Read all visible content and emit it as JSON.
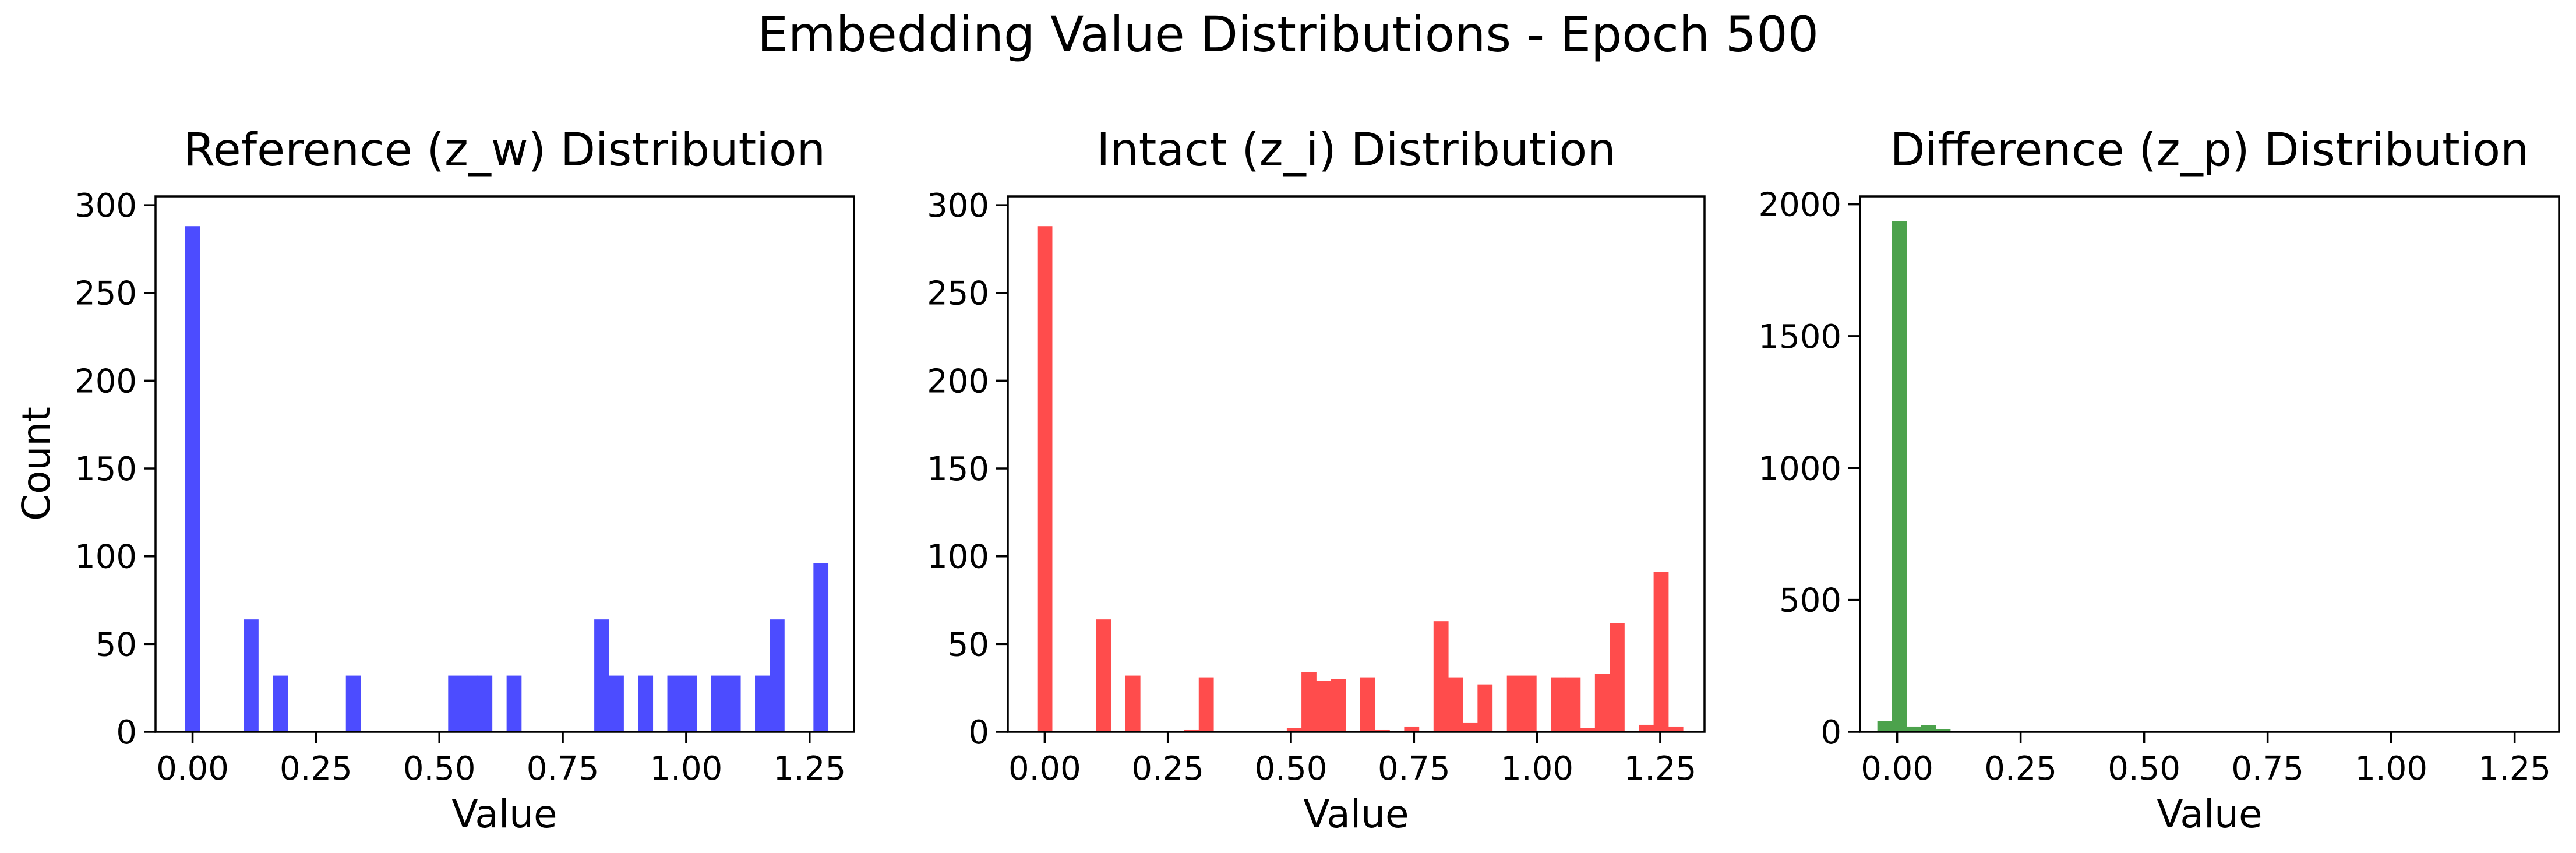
{
  "figure": {
    "title": "Embedding Value Distributions - Epoch 500"
  },
  "chart_data": [
    {
      "type": "bar",
      "title": "Reference (z_w) Distribution",
      "xlabel": "Value",
      "ylabel": "Count",
      "color": "#4c4cff",
      "xlim": [
        -0.075,
        1.34
      ],
      "ylim": [
        0,
        305
      ],
      "xticks": [
        0.0,
        0.25,
        0.5,
        0.75,
        1.0,
        1.25
      ],
      "xtick_labels": [
        "0.00",
        "0.25",
        "0.50",
        "0.75",
        "1.00",
        "1.25"
      ],
      "yticks": [
        0,
        50,
        100,
        150,
        200,
        250,
        300
      ],
      "ytick_labels": [
        "0",
        "50",
        "100",
        "150",
        "200",
        "250",
        "300"
      ],
      "bin_start": -0.015,
      "bin_width": 0.0296,
      "counts": [
        288,
        0,
        0,
        0,
        64,
        0,
        32,
        0,
        0,
        0,
        0,
        32,
        0,
        0,
        0,
        0,
        0,
        0,
        32,
        32,
        32,
        0,
        32,
        0,
        0,
        0,
        0,
        0,
        64,
        32,
        0,
        32,
        0,
        32,
        32,
        0,
        32,
        32,
        0,
        32,
        64,
        0,
        0,
        96
      ]
    },
    {
      "type": "bar",
      "title": "Intact (z_i) Distribution",
      "xlabel": "Value",
      "ylabel": "",
      "color": "#ff4c4c",
      "xlim": [
        -0.075,
        1.34
      ],
      "ylim": [
        0,
        305
      ],
      "xticks": [
        0.0,
        0.25,
        0.5,
        0.75,
        1.0,
        1.25
      ],
      "xtick_labels": [
        "0.00",
        "0.25",
        "0.50",
        "0.75",
        "1.00",
        "1.25"
      ],
      "yticks": [
        0,
        50,
        100,
        150,
        200,
        250,
        300
      ],
      "ytick_labels": [
        "0",
        "50",
        "100",
        "150",
        "200",
        "250",
        "300"
      ],
      "bin_start": -0.015,
      "bin_width": 0.0298,
      "counts": [
        288,
        0,
        0,
        0,
        64,
        0,
        32,
        0,
        0,
        0,
        1,
        31,
        0,
        0,
        0,
        0,
        0,
        2,
        34,
        29,
        30,
        0,
        31,
        1,
        0,
        3,
        0,
        63,
        31,
        5,
        27,
        0,
        32,
        32,
        0,
        31,
        31,
        2,
        33,
        62,
        0,
        4,
        91,
        3
      ]
    },
    {
      "type": "bar",
      "title": "Difference (z_p) Distribution",
      "xlabel": "Value",
      "ylabel": "",
      "color": "#4ca24c",
      "xlim": [
        -0.075,
        1.34
      ],
      "ylim": [
        0,
        2030
      ],
      "xticks": [
        0.0,
        0.25,
        0.5,
        0.75,
        1.0,
        1.25
      ],
      "xtick_labels": [
        "0.00",
        "0.25",
        "0.50",
        "0.75",
        "1.00",
        "1.25"
      ],
      "yticks": [
        0,
        500,
        1000,
        1500,
        2000
      ],
      "ytick_labels": [
        "0",
        "500",
        "1000",
        "1500",
        "2000"
      ],
      "bin_start": -0.04,
      "bin_width": 0.0295,
      "counts": [
        40,
        1935,
        20,
        25,
        10,
        3,
        2,
        1,
        1,
        0,
        0,
        0,
        0,
        0,
        0,
        0,
        0,
        0,
        0,
        0,
        0,
        0,
        0,
        0,
        0,
        0,
        0,
        0,
        0,
        0,
        0,
        0,
        0,
        0,
        0,
        0,
        0,
        0,
        0,
        0,
        0,
        0,
        0,
        0,
        0,
        0,
        0
      ]
    }
  ]
}
